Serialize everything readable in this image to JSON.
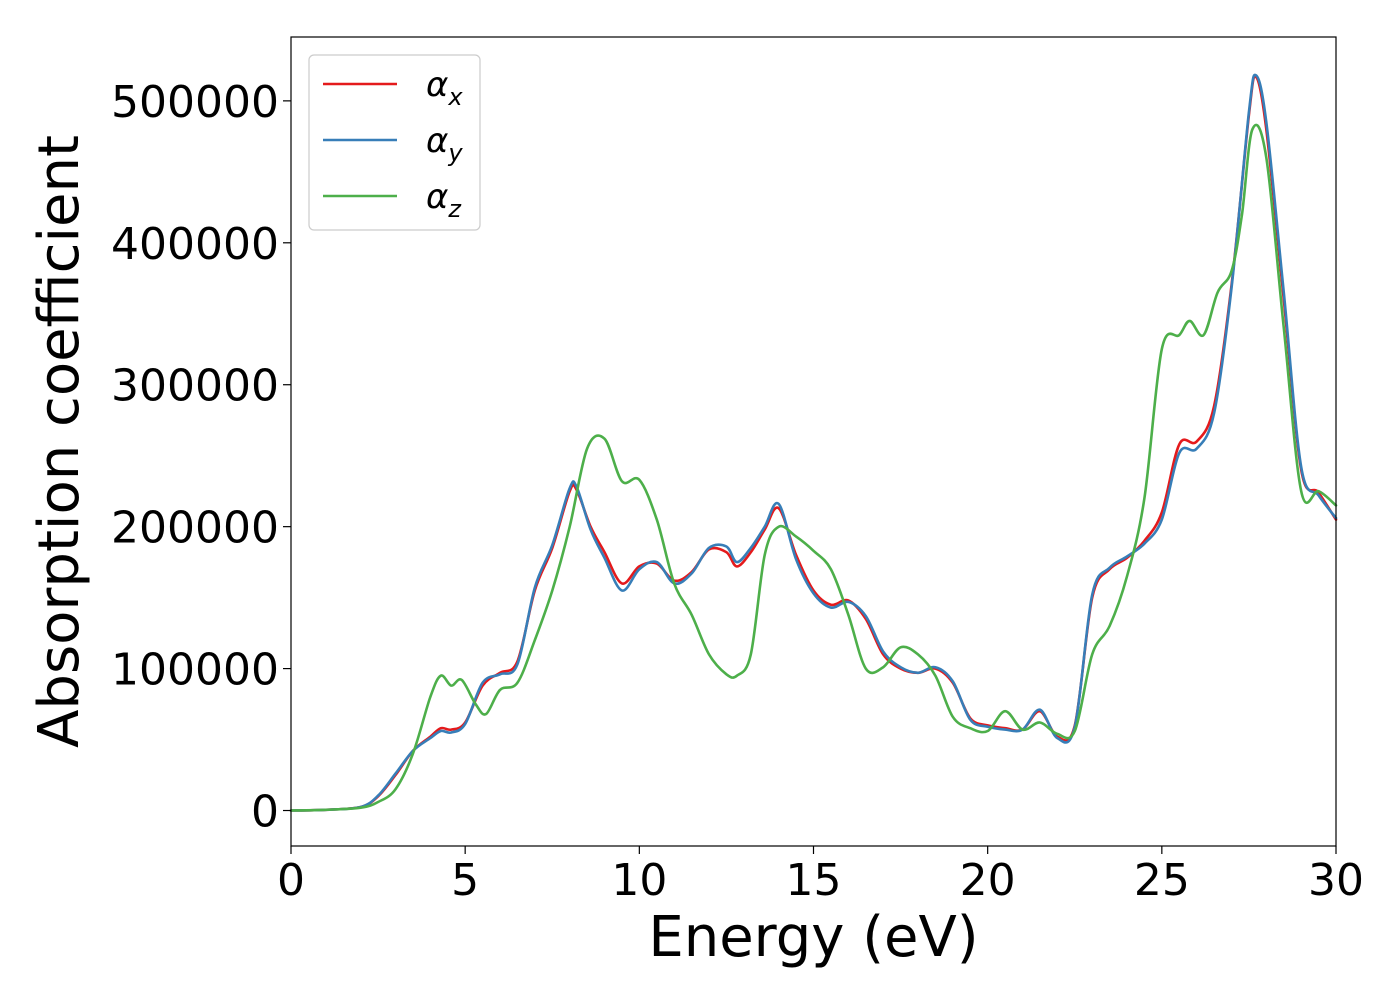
{
  "chart_data": {
    "type": "line",
    "title": "",
    "xlabel": "Energy (eV)",
    "ylabel": "Absorption coefficient",
    "xlim": [
      0,
      30
    ],
    "ylim": [
      -25000,
      545000
    ],
    "xticks": [
      0,
      5,
      10,
      15,
      20,
      25,
      30
    ],
    "yticks": [
      0,
      100000,
      200000,
      300000,
      400000,
      500000
    ],
    "grid": false,
    "legend_position": "top-left",
    "series": [
      {
        "name": "αx",
        "symbol": "α",
        "subscript": "x",
        "color": "#e41a1c",
        "x": [
          0,
          1,
          2,
          2.5,
          3,
          3.5,
          4,
          4.3,
          4.6,
          5,
          5.5,
          6,
          6.5,
          7,
          7.5,
          8,
          8.2,
          8.6,
          9,
          9.5,
          10,
          10.5,
          11,
          11.5,
          12,
          12.5,
          12.8,
          13.2,
          13.6,
          14,
          14.5,
          15,
          15.5,
          16,
          16.5,
          17,
          17.5,
          18,
          18.5,
          19,
          19.5,
          20,
          20.5,
          21,
          21.5,
          22,
          22.5,
          23,
          23.5,
          24,
          24.5,
          25,
          25.5,
          26,
          26.5,
          27,
          27.5,
          27.7,
          28,
          28.5,
          29,
          29.5,
          30
        ],
        "y": [
          0,
          500,
          2500,
          10000,
          25000,
          42000,
          52000,
          58000,
          57000,
          62000,
          88000,
          97000,
          105000,
          155000,
          185000,
          225000,
          226000,
          200000,
          182000,
          160000,
          172000,
          174000,
          162000,
          168000,
          184000,
          182000,
          172000,
          182000,
          198000,
          213000,
          180000,
          155000,
          145000,
          148000,
          135000,
          110000,
          100000,
          97000,
          100000,
          90000,
          65000,
          60000,
          58000,
          57000,
          70000,
          52000,
          60000,
          150000,
          170000,
          178000,
          190000,
          210000,
          258000,
          260000,
          285000,
          370000,
          490000,
          517000,
          480000,
          360000,
          240000,
          224000,
          205000
        ]
      },
      {
        "name": "αy",
        "symbol": "α",
        "subscript": "y",
        "color": "#377eb8",
        "x": [
          0,
          1,
          2,
          2.5,
          3,
          3.5,
          4,
          4.3,
          4.6,
          5,
          5.5,
          6,
          6.5,
          7,
          7.5,
          8,
          8.2,
          8.6,
          9,
          9.5,
          10,
          10.5,
          11,
          11.5,
          12,
          12.5,
          12.8,
          13.2,
          13.6,
          14,
          14.5,
          15,
          15.5,
          16,
          16.5,
          17,
          17.5,
          18,
          18.5,
          19,
          19.5,
          20,
          20.5,
          21,
          21.5,
          22,
          22.5,
          23,
          23.5,
          24,
          24.5,
          25,
          25.5,
          26,
          26.5,
          27,
          27.5,
          27.7,
          28,
          28.5,
          29,
          29.5,
          30
        ],
        "y": [
          0,
          500,
          2500,
          10500,
          26000,
          42000,
          51000,
          56000,
          55000,
          61000,
          90000,
          96000,
          103000,
          157000,
          187000,
          227000,
          228000,
          198000,
          178000,
          155000,
          170000,
          175000,
          160000,
          167000,
          185000,
          186000,
          175000,
          185000,
          200000,
          216000,
          177000,
          153000,
          143000,
          147000,
          137000,
          112000,
          101000,
          97000,
          101000,
          91000,
          64000,
          59000,
          57000,
          57000,
          71000,
          51000,
          59000,
          152000,
          171000,
          179000,
          188000,
          205000,
          252000,
          255000,
          280000,
          368000,
          492000,
          518000,
          485000,
          365000,
          242000,
          222000,
          206000
        ]
      },
      {
        "name": "αz",
        "symbol": "α",
        "subscript": "z",
        "color": "#4daf4a",
        "x": [
          0,
          1,
          2,
          2.5,
          3,
          3.5,
          4,
          4.3,
          4.6,
          4.9,
          5.3,
          5.6,
          6,
          6.5,
          7,
          7.5,
          8,
          8.5,
          9,
          9.5,
          10,
          10.5,
          11,
          11.5,
          12,
          12.5,
          12.8,
          13.2,
          13.6,
          14,
          14.5,
          15,
          15.5,
          16,
          16.5,
          17,
          17.5,
          18,
          18.5,
          19,
          19.5,
          20,
          20.5,
          21,
          21.5,
          22,
          22.5,
          23,
          23.5,
          24,
          24.5,
          25,
          25.5,
          25.8,
          26.2,
          26.6,
          27,
          27.3,
          27.6,
          28,
          28.5,
          29,
          29.5,
          30
        ],
        "y": [
          0,
          500,
          2000,
          6000,
          15000,
          40000,
          80000,
          95000,
          88000,
          92000,
          75000,
          68000,
          85000,
          90000,
          120000,
          155000,
          200000,
          255000,
          262000,
          232000,
          233000,
          205000,
          160000,
          138000,
          110000,
          96000,
          95000,
          110000,
          180000,
          200000,
          193000,
          183000,
          170000,
          138000,
          100000,
          101000,
          115000,
          110000,
          95000,
          66000,
          58000,
          56000,
          70000,
          57000,
          62000,
          54000,
          56000,
          110000,
          130000,
          165000,
          220000,
          325000,
          335000,
          345000,
          335000,
          365000,
          380000,
          420000,
          480000,
          460000,
          340000,
          225000,
          225000,
          215000
        ]
      }
    ]
  }
}
